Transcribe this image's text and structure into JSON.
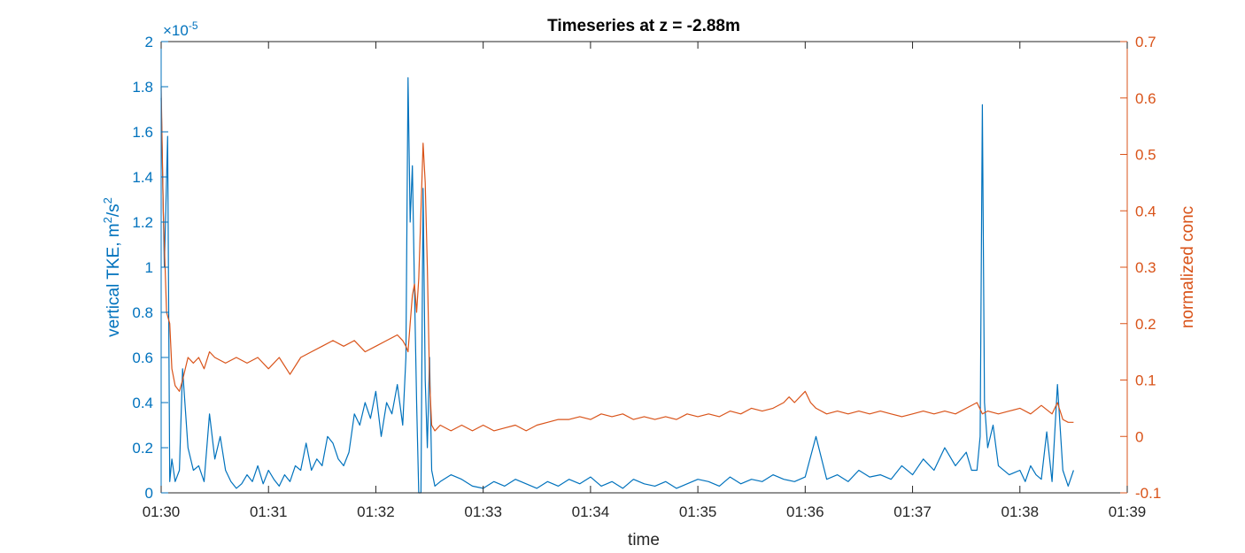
{
  "chart_data": {
    "type": "line",
    "title": "Timeseries at z = -2.88m",
    "xlabel": "time",
    "y_left_label_main": "vertical TKE, m",
    "y_left_label_sup1": "2",
    "y_left_label_mid": "/s",
    "y_left_label_sup2": "2",
    "y_left_exponent_prefix": "×10",
    "y_left_exponent": "-5",
    "y_right_label": "normalized conc",
    "x_ticks": [
      "01:30",
      "01:31",
      "01:32",
      "01:33",
      "01:34",
      "01:35",
      "01:36",
      "01:37",
      "01:38",
      "01:39"
    ],
    "y_left_ticks": [
      "0",
      "0.2",
      "0.4",
      "0.6",
      "0.8",
      "1",
      "1.2",
      "1.4",
      "1.6",
      "1.8",
      "2"
    ],
    "y_right_ticks": [
      "-0.1",
      "0",
      "0.1",
      "0.2",
      "0.3",
      "0.4",
      "0.5",
      "0.6",
      "0.7"
    ],
    "xlim": [
      0,
      9
    ],
    "ylim_left": [
      0,
      2
    ],
    "ylim_right": [
      -0.1,
      0.7
    ],
    "grid": false,
    "colors": {
      "left": "#0072BD",
      "right": "#D95319",
      "axis": "#262626"
    },
    "series": [
      {
        "axis": "left",
        "x_unit": "minutes after 01:30",
        "x": [
          0.0,
          0.03,
          0.06,
          0.08,
          0.1,
          0.13,
          0.17,
          0.2,
          0.25,
          0.3,
          0.35,
          0.4,
          0.45,
          0.5,
          0.55,
          0.6,
          0.65,
          0.7,
          0.75,
          0.8,
          0.85,
          0.9,
          0.95,
          1.0,
          1.05,
          1.1,
          1.15,
          1.2,
          1.25,
          1.3,
          1.35,
          1.4,
          1.45,
          1.5,
          1.55,
          1.6,
          1.65,
          1.7,
          1.75,
          1.8,
          1.85,
          1.9,
          1.95,
          2.0,
          2.05,
          2.1,
          2.15,
          2.2,
          2.25,
          2.28,
          2.3,
          2.32,
          2.34,
          2.36,
          2.38,
          2.4,
          2.42,
          2.44,
          2.46,
          2.48,
          2.5,
          2.52,
          2.55,
          2.6,
          2.7,
          2.8,
          2.9,
          3.0,
          3.1,
          3.2,
          3.3,
          3.4,
          3.5,
          3.6,
          3.7,
          3.8,
          3.9,
          4.0,
          4.1,
          4.2,
          4.3,
          4.4,
          4.5,
          4.6,
          4.7,
          4.8,
          4.9,
          5.0,
          5.1,
          5.2,
          5.3,
          5.4,
          5.5,
          5.6,
          5.7,
          5.8,
          5.9,
          6.0,
          6.1,
          6.2,
          6.3,
          6.4,
          6.5,
          6.6,
          6.7,
          6.8,
          6.9,
          7.0,
          7.1,
          7.2,
          7.3,
          7.4,
          7.5,
          7.55,
          7.6,
          7.63,
          7.65,
          7.67,
          7.7,
          7.75,
          7.8,
          7.9,
          8.0,
          8.05,
          8.1,
          8.15,
          8.2,
          8.25,
          8.3,
          8.35,
          8.4,
          8.45,
          8.5
        ],
        "values": [
          1.75,
          1.0,
          1.58,
          0.05,
          0.15,
          0.05,
          0.1,
          0.55,
          0.2,
          0.1,
          0.12,
          0.05,
          0.35,
          0.15,
          0.25,
          0.1,
          0.05,
          0.02,
          0.04,
          0.08,
          0.05,
          0.12,
          0.04,
          0.1,
          0.06,
          0.03,
          0.08,
          0.05,
          0.12,
          0.1,
          0.22,
          0.1,
          0.15,
          0.12,
          0.25,
          0.22,
          0.15,
          0.12,
          0.18,
          0.35,
          0.3,
          0.4,
          0.33,
          0.45,
          0.25,
          0.4,
          0.35,
          0.48,
          0.3,
          0.6,
          1.84,
          1.2,
          1.45,
          0.9,
          0.4,
          0.0,
          0.0,
          1.35,
          0.5,
          0.2,
          0.6,
          0.1,
          0.03,
          0.05,
          0.08,
          0.06,
          0.03,
          0.02,
          0.05,
          0.03,
          0.06,
          0.04,
          0.02,
          0.05,
          0.03,
          0.06,
          0.04,
          0.07,
          0.03,
          0.05,
          0.02,
          0.06,
          0.04,
          0.03,
          0.05,
          0.02,
          0.04,
          0.06,
          0.05,
          0.03,
          0.07,
          0.04,
          0.06,
          0.05,
          0.08,
          0.06,
          0.05,
          0.07,
          0.25,
          0.06,
          0.08,
          0.05,
          0.1,
          0.07,
          0.08,
          0.06,
          0.12,
          0.08,
          0.15,
          0.1,
          0.2,
          0.12,
          0.18,
          0.1,
          0.1,
          0.25,
          1.72,
          0.4,
          0.2,
          0.3,
          0.12,
          0.08,
          0.1,
          0.05,
          0.12,
          0.08,
          0.06,
          0.27,
          0.05,
          0.48,
          0.1,
          0.03,
          0.1
        ]
      },
      {
        "axis": "right",
        "x_unit": "minutes after 01:30",
        "x": [
          0.0,
          0.02,
          0.05,
          0.08,
          0.1,
          0.13,
          0.17,
          0.2,
          0.25,
          0.3,
          0.35,
          0.4,
          0.45,
          0.5,
          0.6,
          0.7,
          0.8,
          0.9,
          1.0,
          1.1,
          1.2,
          1.3,
          1.4,
          1.5,
          1.6,
          1.7,
          1.8,
          1.9,
          2.0,
          2.1,
          2.2,
          2.25,
          2.28,
          2.3,
          2.32,
          2.34,
          2.36,
          2.38,
          2.4,
          2.42,
          2.44,
          2.46,
          2.48,
          2.5,
          2.52,
          2.55,
          2.6,
          2.7,
          2.8,
          2.9,
          3.0,
          3.1,
          3.2,
          3.3,
          3.4,
          3.5,
          3.6,
          3.7,
          3.8,
          3.9,
          4.0,
          4.1,
          4.2,
          4.3,
          4.4,
          4.5,
          4.6,
          4.7,
          4.8,
          4.9,
          5.0,
          5.1,
          5.2,
          5.3,
          5.4,
          5.5,
          5.6,
          5.7,
          5.8,
          5.85,
          5.9,
          6.0,
          6.05,
          6.1,
          6.2,
          6.3,
          6.4,
          6.5,
          6.6,
          6.7,
          6.8,
          6.9,
          7.0,
          7.1,
          7.2,
          7.3,
          7.4,
          7.5,
          7.6,
          7.65,
          7.7,
          7.8,
          7.9,
          8.0,
          8.1,
          8.2,
          8.3,
          8.35,
          8.4,
          8.45,
          8.5
        ],
        "values": [
          0.62,
          0.4,
          0.22,
          0.2,
          0.12,
          0.09,
          0.08,
          0.1,
          0.14,
          0.13,
          0.14,
          0.12,
          0.15,
          0.14,
          0.13,
          0.14,
          0.13,
          0.14,
          0.12,
          0.14,
          0.11,
          0.14,
          0.15,
          0.16,
          0.17,
          0.16,
          0.17,
          0.15,
          0.16,
          0.17,
          0.18,
          0.17,
          0.16,
          0.15,
          0.2,
          0.25,
          0.27,
          0.22,
          0.28,
          0.4,
          0.52,
          0.45,
          0.3,
          0.1,
          0.02,
          0.01,
          0.02,
          0.01,
          0.02,
          0.01,
          0.02,
          0.01,
          0.015,
          0.02,
          0.01,
          0.02,
          0.025,
          0.03,
          0.03,
          0.035,
          0.03,
          0.04,
          0.035,
          0.04,
          0.03,
          0.035,
          0.03,
          0.035,
          0.03,
          0.04,
          0.035,
          0.04,
          0.035,
          0.045,
          0.04,
          0.05,
          0.045,
          0.05,
          0.06,
          0.07,
          0.06,
          0.08,
          0.06,
          0.05,
          0.04,
          0.045,
          0.04,
          0.045,
          0.04,
          0.045,
          0.04,
          0.035,
          0.04,
          0.045,
          0.04,
          0.045,
          0.04,
          0.05,
          0.06,
          0.04,
          0.045,
          0.04,
          0.045,
          0.05,
          0.04,
          0.055,
          0.04,
          0.06,
          0.03,
          0.025,
          0.025
        ]
      }
    ]
  }
}
